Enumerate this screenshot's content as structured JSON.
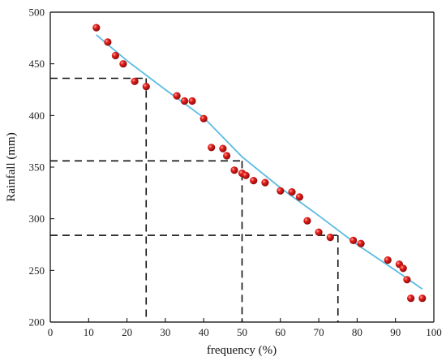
{
  "chart_data": {
    "type": "scatter",
    "title": "",
    "xlabel": "frequency (%)",
    "ylabel": "Rainfall (mm)",
    "xlim": [
      0,
      100
    ],
    "ylim": [
      200,
      500
    ],
    "x_ticks": [
      0,
      10,
      20,
      30,
      40,
      50,
      60,
      70,
      80,
      90,
      100
    ],
    "y_ticks": [
      200,
      250,
      300,
      350,
      400,
      450,
      500
    ],
    "grid": false,
    "legend": "none",
    "colors": {
      "points": "#d7191c",
      "fit_line": "#5bbbe3",
      "reference_lines": "#111111",
      "axes": "#000000"
    },
    "series": [
      {
        "kind": "points",
        "points": [
          [
            12,
            485
          ],
          [
            15,
            471
          ],
          [
            17,
            458
          ],
          [
            19,
            450
          ],
          [
            22,
            433
          ],
          [
            25,
            428
          ],
          [
            33,
            419
          ],
          [
            35,
            414
          ],
          [
            37,
            414
          ],
          [
            40,
            397
          ],
          [
            42,
            369
          ],
          [
            45,
            368
          ],
          [
            46,
            361
          ],
          [
            48,
            347
          ],
          [
            50,
            344
          ],
          [
            51,
            342
          ],
          [
            53,
            337
          ],
          [
            56,
            335
          ],
          [
            60,
            327
          ],
          [
            63,
            326
          ],
          [
            65,
            321
          ],
          [
            67,
            298
          ],
          [
            70,
            287
          ],
          [
            73,
            282
          ],
          [
            79,
            279
          ],
          [
            81,
            276
          ],
          [
            88,
            260
          ],
          [
            91,
            256
          ],
          [
            92,
            252
          ],
          [
            93,
            241
          ],
          [
            94,
            223
          ],
          [
            97,
            223
          ]
        ]
      },
      {
        "kind": "fit_line",
        "points": [
          [
            12,
            478
          ],
          [
            20,
            453
          ],
          [
            30,
            425
          ],
          [
            40,
            398
          ],
          [
            50,
            360
          ],
          [
            60,
            330
          ],
          [
            70,
            303
          ],
          [
            80,
            275
          ],
          [
            90,
            250
          ],
          [
            97,
            232
          ]
        ]
      }
    ],
    "reference_lines": [
      {
        "x": 25,
        "y": 436
      },
      {
        "x": 50,
        "y": 356
      },
      {
        "x": 75,
        "y": 284
      }
    ]
  }
}
